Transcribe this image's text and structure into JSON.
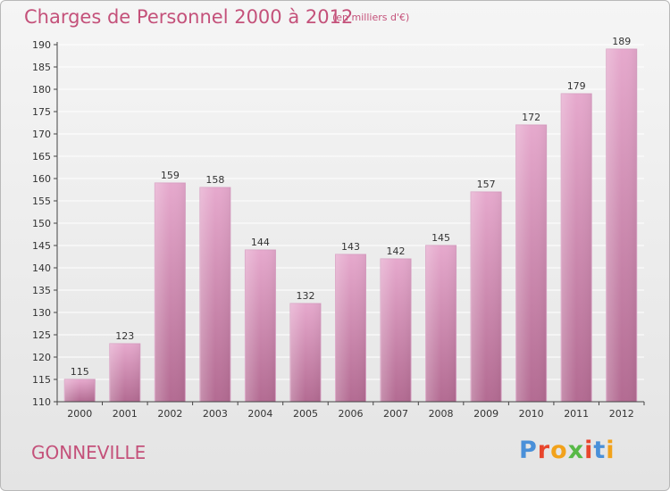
{
  "header": {
    "title": "Charges de Personnel 2000 à 2012",
    "subtitle": "(en milliers d'€)"
  },
  "footer": {
    "commune": "GONNEVILLE",
    "logo_text": "Proxiti",
    "logo_colors": [
      "#4a90d9",
      "#e8452c",
      "#f2a21b",
      "#58b947",
      "#e8452c",
      "#4a90d9",
      "#f2a21b"
    ]
  },
  "colors": {
    "bar_top": "#e6a9cd",
    "bar_bottom": "#b36b92",
    "axis": "#444444",
    "grid": "#ffffff"
  },
  "chart_data": {
    "type": "bar",
    "title": "Charges de Personnel 2000 à 2012",
    "subtitle": "(en milliers d'€)",
    "xlabel": "",
    "ylabel": "",
    "ylim": [
      110,
      190
    ],
    "ytick_step": 5,
    "yticks": [
      "110",
      "115",
      "120",
      "125",
      "130",
      "135",
      "140",
      "145",
      "150",
      "155",
      "160",
      "165",
      "170",
      "175",
      "180",
      "185",
      "190"
    ],
    "grid": true,
    "categories": [
      "2000",
      "2001",
      "2002",
      "2003",
      "2004",
      "2005",
      "2006",
      "2007",
      "2008",
      "2009",
      "2010",
      "2011",
      "2012"
    ],
    "values": [
      115,
      123,
      159,
      158,
      144,
      132,
      143,
      142,
      145,
      157,
      172,
      179,
      189
    ],
    "value_labels": [
      "115",
      "123",
      "159",
      "158",
      "144",
      "132",
      "143",
      "142",
      "145",
      "157",
      "172",
      "179",
      "189"
    ]
  }
}
